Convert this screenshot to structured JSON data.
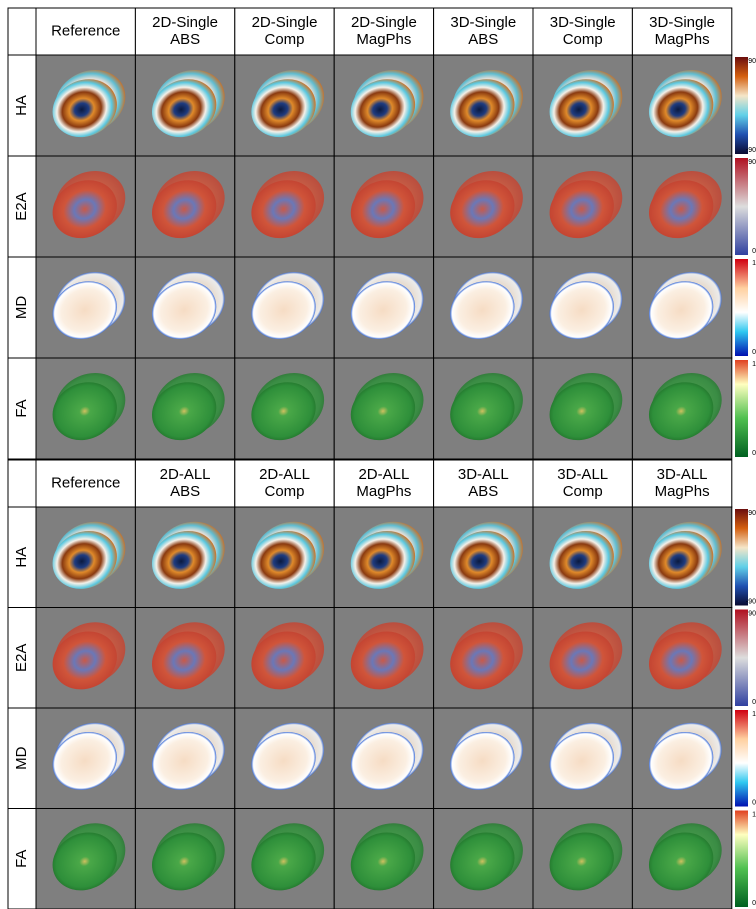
{
  "panels": [
    {
      "headers": [
        [
          "Reference"
        ],
        [
          "2D-Single",
          "ABS"
        ],
        [
          "2D-Single",
          "Comp"
        ],
        [
          "2D-Single",
          "MagPhs"
        ],
        [
          "3D-Single",
          "ABS"
        ],
        [
          "3D-Single",
          "Comp"
        ],
        [
          "3D-Single",
          "MagPhs"
        ]
      ],
      "rows": [
        {
          "label": "HA",
          "colorbar": {
            "max": "90",
            "min": "-90"
          }
        },
        {
          "label": "E2A",
          "colorbar": {
            "max": "90",
            "min": "0"
          }
        },
        {
          "label": "MD",
          "colorbar": {
            "max": "1",
            "min": "0"
          }
        },
        {
          "label": "FA",
          "colorbar": {
            "max": "1",
            "min": "0"
          }
        }
      ]
    },
    {
      "headers": [
        [
          "Reference"
        ],
        [
          "2D-ALL",
          "ABS"
        ],
        [
          "2D-ALL",
          "Comp"
        ],
        [
          "2D-ALL",
          "MagPhs"
        ],
        [
          "3D-ALL",
          "ABS"
        ],
        [
          "3D-ALL",
          "Comp"
        ],
        [
          "3D-ALL",
          "MagPhs"
        ]
      ],
      "rows": [
        {
          "label": "HA",
          "colorbar": {
            "max": "90",
            "min": "-90"
          }
        },
        {
          "label": "E2A",
          "colorbar": {
            "max": "90",
            "min": "0"
          }
        },
        {
          "label": "MD",
          "colorbar": {
            "max": "1",
            "min": "0"
          }
        },
        {
          "label": "FA",
          "colorbar": {
            "max": "1",
            "min": "0"
          }
        }
      ]
    }
  ]
}
